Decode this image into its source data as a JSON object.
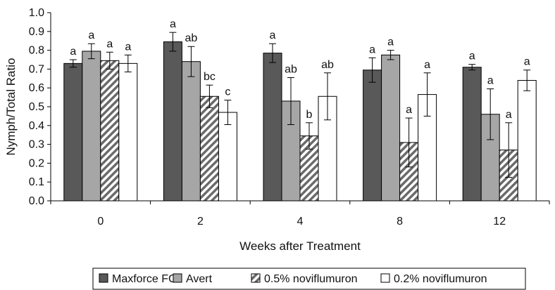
{
  "chart_data": {
    "type": "bar",
    "categories": [
      "0",
      "2",
      "4",
      "8",
      "12"
    ],
    "xlabel": "Weeks after Treatment",
    "ylabel": "Nymph/Total Ratio",
    "ylim": [
      0,
      1.0
    ],
    "yticks": [
      "0.0",
      "0.1",
      "0.2",
      "0.3",
      "0.4",
      "0.5",
      "0.6",
      "0.7",
      "0.8",
      "0.9",
      "1.0"
    ],
    "grid": false,
    "legend_position": "bottom",
    "series": [
      {
        "name": "Maxforce FC",
        "fill": "#595959",
        "pattern": "solid",
        "values": [
          0.73,
          0.845,
          0.785,
          0.695,
          0.71
        ],
        "err": [
          0.02,
          0.05,
          0.05,
          0.065,
          0.015
        ],
        "letters": [
          "a",
          "a",
          "a",
          "a",
          "a"
        ]
      },
      {
        "name": "Avert",
        "fill": "#a6a6a6",
        "pattern": "solid",
        "values": [
          0.795,
          0.74,
          0.53,
          0.775,
          0.46
        ],
        "err": [
          0.04,
          0.08,
          0.125,
          0.025,
          0.135
        ],
        "letters": [
          "a",
          "ab",
          "ab",
          "a",
          "a"
        ]
      },
      {
        "name": "0.5% noviflumuron",
        "fill": "#ffffff",
        "pattern": "hatch",
        "values": [
          0.745,
          0.555,
          0.345,
          0.31,
          0.27
        ],
        "err": [
          0.045,
          0.06,
          0.07,
          0.13,
          0.145
        ],
        "letters": [
          "a",
          "bc",
          "b",
          "a",
          "a"
        ]
      },
      {
        "name": "0.2% noviflumuron",
        "fill": "#ffffff",
        "pattern": "solid",
        "values": [
          0.73,
          0.47,
          0.555,
          0.565,
          0.64
        ],
        "err": [
          0.045,
          0.065,
          0.125,
          0.115,
          0.055
        ],
        "letters": [
          "a",
          "c",
          "ab",
          "a",
          "a"
        ]
      }
    ]
  }
}
